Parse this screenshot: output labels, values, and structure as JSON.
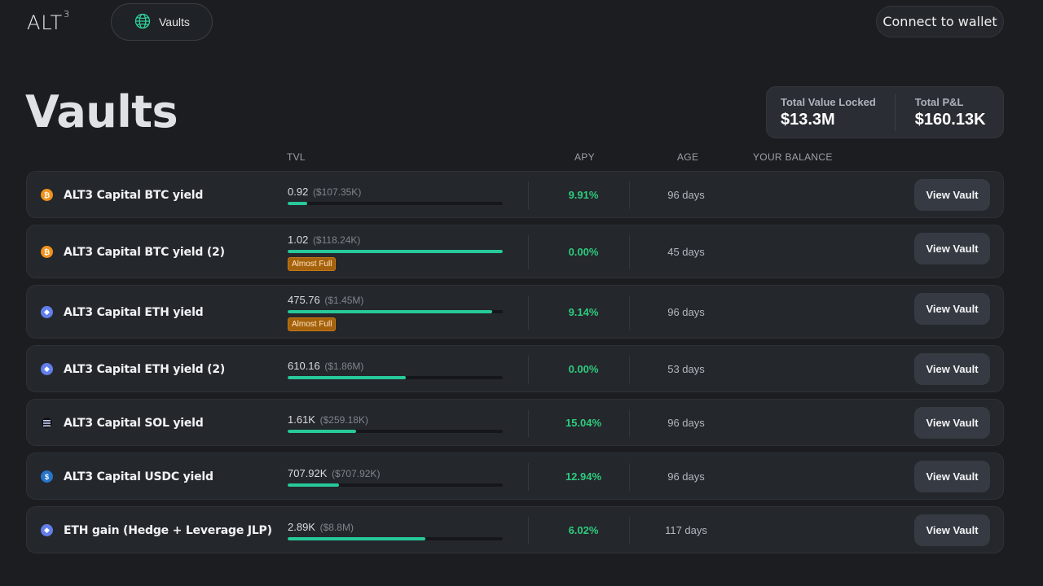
{
  "header": {
    "logo": "ALT",
    "logo_sup": "3",
    "nav_label": "Vaults",
    "connect_label": "Connect to wallet"
  },
  "page": {
    "title": "Vaults"
  },
  "stats": {
    "tvl_label": "Total Value Locked",
    "tvl_value": "$13.3M",
    "pnl_label": "Total P&L",
    "pnl_value": "$160.13K"
  },
  "columns": {
    "tvl": "TVL",
    "apy": "APY",
    "age": "AGE",
    "balance": "YOUR BALANCE"
  },
  "colors": {
    "accent_green": "#27c99a",
    "apy_green": "#2ecb7e",
    "badge": "#a5620d"
  },
  "vaults": [
    {
      "name": "ALT3 Capital BTC yield",
      "coin": "btc-icon",
      "tvl": "0.92",
      "tvl_usd": "($107.35K)",
      "fill": 0.09,
      "badge": "",
      "apy": "9.91%",
      "age": "96 days",
      "action": "View Vault"
    },
    {
      "name": "ALT3 Capital BTC yield (2)",
      "coin": "btc-icon",
      "tvl": "1.02",
      "tvl_usd": "($118.24K)",
      "fill": 1.0,
      "badge": "Almost Full",
      "apy": "0.00%",
      "age": "45 days",
      "action": "View Vault"
    },
    {
      "name": "ALT3 Capital ETH yield",
      "coin": "eth-icon",
      "tvl": "475.76",
      "tvl_usd": "($1.45M)",
      "fill": 0.95,
      "badge": "Almost Full",
      "apy": "9.14%",
      "age": "96 days",
      "action": "View Vault"
    },
    {
      "name": "ALT3 Capital ETH yield (2)",
      "coin": "eth-icon",
      "tvl": "610.16",
      "tvl_usd": "($1.86M)",
      "fill": 0.55,
      "badge": "",
      "apy": "0.00%",
      "age": "53 days",
      "action": "View Vault"
    },
    {
      "name": "ALT3 Capital SOL yield",
      "coin": "sol-icon",
      "tvl": "1.61K",
      "tvl_usd": "($259.18K)",
      "fill": 0.32,
      "badge": "",
      "apy": "15.04%",
      "age": "96 days",
      "action": "View Vault"
    },
    {
      "name": "ALT3 Capital USDC yield",
      "coin": "usdc-icon",
      "tvl": "707.92K",
      "tvl_usd": "($707.92K)",
      "fill": 0.24,
      "badge": "",
      "apy": "12.94%",
      "age": "96 days",
      "action": "View Vault"
    },
    {
      "name": "ETH gain (Hedge + Leverage JLP)",
      "coin": "eth-icon",
      "tvl": "2.89K",
      "tvl_usd": "($8.8M)",
      "fill": 0.64,
      "badge": "",
      "apy": "6.02%",
      "age": "117 days",
      "action": "View Vault"
    }
  ]
}
